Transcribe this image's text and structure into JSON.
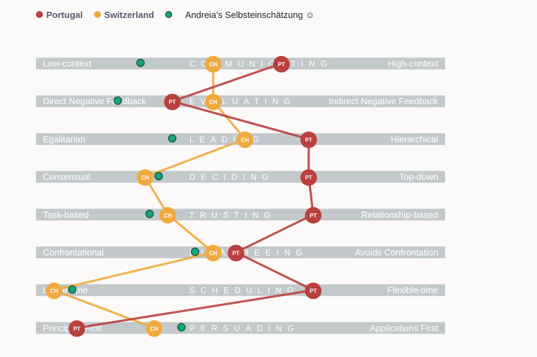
{
  "legend": {
    "portugal": "Portugal",
    "switzerland": "Switzerland",
    "self": "Andreia’s Selbsteinschätzung ☺"
  },
  "colors": {
    "portugal": "#b9403f",
    "switzerland": "#efaa3f",
    "self": "#19a27a",
    "band": "#c3c9cb",
    "background": "#fbfaf9"
  },
  "chart_data": {
    "type": "line",
    "scale": [
      1,
      10
    ],
    "dimensions": [
      {
        "title": "COMMUNICATING",
        "left": "Low-context",
        "right": "High-context"
      },
      {
        "title": "EVALUATING",
        "left": "Direct Negative Feedback",
        "right": "Indirect Negative Feedback"
      },
      {
        "title": "LEADING",
        "left": "Egalitarian",
        "right": "Hierarchical"
      },
      {
        "title": "DECIDING",
        "left": "Consensual",
        "right": "Top-down"
      },
      {
        "title": "TRUSTING",
        "left": "Task-based",
        "right": "Relationship-based"
      },
      {
        "title": "DISAGREEING",
        "left": "Confrontational",
        "right": "Avoids Confrontation"
      },
      {
        "title": "SCHEDULING",
        "left": "Linear-time",
        "right": "Flexible-time"
      },
      {
        "title": "PERSUADING",
        "left": "Principles First",
        "right": "Applications First"
      }
    ],
    "series": [
      {
        "name": "Portugal",
        "marker": "PT",
        "values": [
          6.4,
          4.0,
          7.0,
          7.0,
          7.1,
          5.4,
          7.1,
          1.9
        ]
      },
      {
        "name": "Switzerland",
        "marker": "CH",
        "values": [
          4.9,
          4.9,
          5.6,
          3.4,
          3.9,
          4.9,
          1.4,
          3.6
        ]
      },
      {
        "name": "Andreia’s Selbsteinschätzung ☺",
        "values": [
          3.3,
          2.8,
          4.0,
          3.7,
          3.5,
          4.5,
          1.8,
          4.2
        ]
      }
    ]
  }
}
